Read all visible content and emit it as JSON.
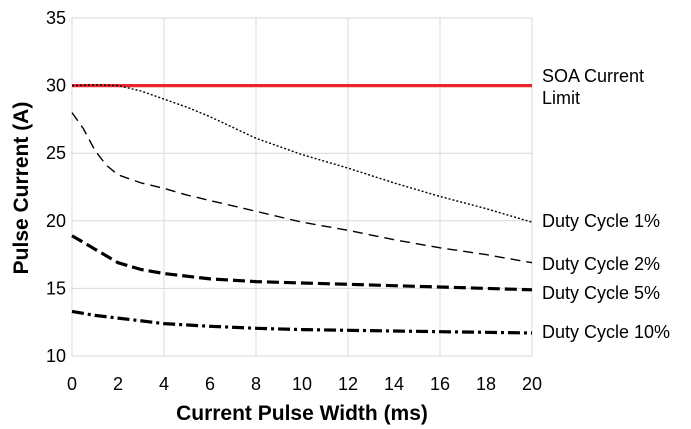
{
  "chart_data": {
    "type": "line",
    "title": "",
    "xlabel": "Current Pulse Width (ms)",
    "ylabel": "Pulse Current (A)",
    "xlim": [
      0,
      20
    ],
    "ylim": [
      10,
      35
    ],
    "xticks": [
      0,
      2,
      4,
      6,
      8,
      10,
      12,
      14,
      16,
      18,
      20
    ],
    "yticks": [
      10,
      15,
      20,
      25,
      30,
      35
    ],
    "grid": true,
    "legend": "inline labels at right end of lines",
    "series": [
      {
        "name": "SOA Current Limit",
        "label_lines": [
          "SOA Current",
          "Limit"
        ],
        "style": "solid",
        "color": "#e8262c",
        "points": [
          [
            0,
            30
          ],
          [
            20,
            30
          ]
        ]
      },
      {
        "name": "Duty Cycle 1%",
        "label_lines": [
          "Duty Cycle 1%"
        ],
        "style": "dotted",
        "color": "#000000",
        "points": [
          [
            0,
            30
          ],
          [
            1,
            30.05
          ],
          [
            2,
            30
          ],
          [
            3,
            29.6
          ],
          [
            4,
            29.0
          ],
          [
            5,
            28.4
          ],
          [
            6,
            27.7
          ],
          [
            7,
            26.9
          ],
          [
            8,
            26.1
          ],
          [
            9,
            25.5
          ],
          [
            10,
            24.9
          ],
          [
            12,
            23.9
          ],
          [
            14,
            22.8
          ],
          [
            16,
            21.8
          ],
          [
            18,
            20.9
          ],
          [
            20,
            19.9
          ]
        ]
      },
      {
        "name": "Duty Cycle 2%",
        "label_lines": [
          "Duty Cycle 2%"
        ],
        "style": "dashed",
        "color": "#000000",
        "points": [
          [
            0,
            28
          ],
          [
            0.5,
            26.8
          ],
          [
            1,
            25.2
          ],
          [
            1.5,
            24.1
          ],
          [
            2,
            23.4
          ],
          [
            3,
            22.8
          ],
          [
            4,
            22.4
          ],
          [
            5,
            21.9
          ],
          [
            6,
            21.5
          ],
          [
            8,
            20.7
          ],
          [
            10,
            19.9
          ],
          [
            12,
            19.3
          ],
          [
            14,
            18.6
          ],
          [
            16,
            18.0
          ],
          [
            18,
            17.5
          ],
          [
            20,
            16.9
          ]
        ]
      },
      {
        "name": "Duty Cycle 5%",
        "label_lines": [
          "Duty Cycle 5%"
        ],
        "style": "bold-dashed",
        "color": "#000000",
        "points": [
          [
            0,
            18.9
          ],
          [
            1,
            17.9
          ],
          [
            2,
            16.9
          ],
          [
            3,
            16.4
          ],
          [
            4,
            16.1
          ],
          [
            6,
            15.7
          ],
          [
            8,
            15.5
          ],
          [
            10,
            15.4
          ],
          [
            12,
            15.3
          ],
          [
            14,
            15.2
          ],
          [
            16,
            15.1
          ],
          [
            18,
            15.0
          ],
          [
            20,
            14.9
          ]
        ]
      },
      {
        "name": "Duty Cycle 10%",
        "label_lines": [
          "Duty Cycle 10%"
        ],
        "style": "dash-dot",
        "color": "#000000",
        "points": [
          [
            0,
            13.3
          ],
          [
            1,
            13.0
          ],
          [
            2,
            12.8
          ],
          [
            4,
            12.4
          ],
          [
            6,
            12.2
          ],
          [
            8,
            12.05
          ],
          [
            10,
            11.95
          ],
          [
            12,
            11.9
          ],
          [
            14,
            11.85
          ],
          [
            16,
            11.8
          ],
          [
            18,
            11.75
          ],
          [
            20,
            11.7
          ]
        ]
      }
    ]
  }
}
